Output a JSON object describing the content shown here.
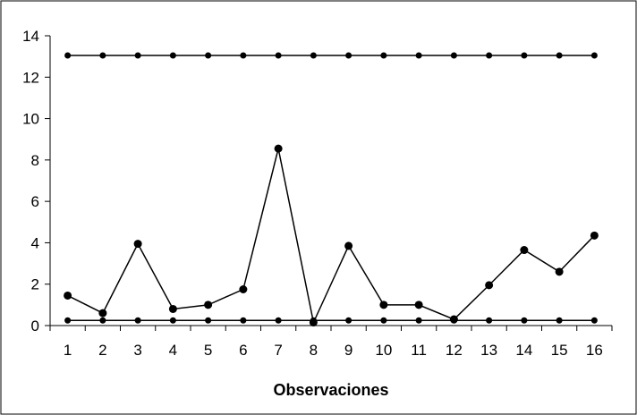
{
  "chart_data": {
    "type": "line",
    "title": "",
    "xlabel": "Observaciones",
    "ylabel": "",
    "x": [
      "1",
      "2",
      "3",
      "4",
      "5",
      "6",
      "7",
      "8",
      "9",
      "10",
      "11",
      "12",
      "13",
      "14",
      "15",
      "16"
    ],
    "ylim": [
      0,
      14
    ],
    "yticks": [
      "0",
      "2",
      "4",
      "6",
      "8",
      "10",
      "12",
      "14"
    ],
    "grid": false,
    "legend": "none",
    "series": [
      {
        "values": [
          13.05,
          13.05,
          13.05,
          13.05,
          13.05,
          13.05,
          13.05,
          13.05,
          13.05,
          13.05,
          13.05,
          13.05,
          13.05,
          13.05,
          13.05,
          13.05
        ],
        "color": "#000000"
      },
      {
        "values": [
          1.45,
          0.6,
          3.95,
          0.8,
          1.0,
          1.75,
          8.55,
          0.15,
          3.85,
          1.0,
          1.0,
          0.3,
          1.95,
          3.65,
          2.6,
          4.35
        ],
        "color": "#000000"
      },
      {
        "values": [
          0.25,
          0.25,
          0.25,
          0.25,
          0.25,
          0.25,
          0.25,
          0.25,
          0.25,
          0.25,
          0.25,
          0.25,
          0.25,
          0.25,
          0.25,
          0.25
        ],
        "color": "#000000"
      }
    ]
  }
}
